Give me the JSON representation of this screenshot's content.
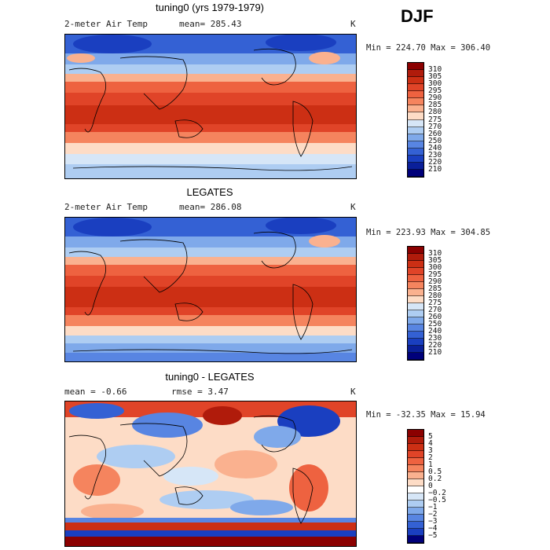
{
  "season": "DJF",
  "panels": [
    {
      "title": "tuning0 (yrs 1979-1979)",
      "variable": "2-meter Air Temp",
      "stat": "mean= 285.43",
      "units": "K",
      "minmax": "Min = 224.70 Max = 306.40",
      "colorbar": {
        "labels": [
          "310",
          "305",
          "300",
          "295",
          "290",
          "285",
          "280",
          "275",
          "270",
          "260",
          "250",
          "240",
          "230",
          "220",
          "210"
        ],
        "colors": [
          "#8b0000",
          "#b01b0b",
          "#cc2f14",
          "#e04428",
          "#ee6240",
          "#f5845e",
          "#fab18f",
          "#fddcc6",
          "#d6e6f7",
          "#aecdf2",
          "#7fa9ea",
          "#5885e2",
          "#3461d4",
          "#1a3fc0",
          "#0a1f99",
          "#00007a"
        ]
      }
    },
    {
      "title": "LEGATES",
      "variable": "2-meter Air Temp",
      "stat": "mean= 286.08",
      "units": "K",
      "minmax": "Min = 223.93 Max = 304.85",
      "colorbar": {
        "labels": [
          "310",
          "305",
          "300",
          "295",
          "290",
          "285",
          "280",
          "275",
          "270",
          "260",
          "250",
          "240",
          "230",
          "220",
          "210"
        ],
        "colors": [
          "#8b0000",
          "#b01b0b",
          "#cc2f14",
          "#e04428",
          "#ee6240",
          "#f5845e",
          "#fab18f",
          "#fddcc6",
          "#d6e6f7",
          "#aecdf2",
          "#7fa9ea",
          "#5885e2",
          "#3461d4",
          "#1a3fc0",
          "#0a1f99",
          "#00007a"
        ]
      }
    },
    {
      "title": "tuning0 - LEGATES",
      "stat": "mean =   -0.66",
      "stat2": "rmse =    3.47",
      "units": "K",
      "minmax": "Min = -32.35 Max =  15.94",
      "colorbar": {
        "labels": [
          "5",
          "4",
          "3",
          "2",
          "1",
          "0.5",
          "0.2",
          "0",
          "−0.2",
          "−0.5",
          "−1",
          "−2",
          "−3",
          "−4",
          "−5"
        ],
        "colors": [
          "#8b0000",
          "#b01b0b",
          "#cc2f14",
          "#e04428",
          "#ee6240",
          "#f5845e",
          "#fab18f",
          "#fddcc6",
          "#ffffff",
          "#d6e6f7",
          "#aecdf2",
          "#7fa9ea",
          "#5885e2",
          "#3461d4",
          "#1a3fc0",
          "#00007a"
        ]
      }
    }
  ]
}
